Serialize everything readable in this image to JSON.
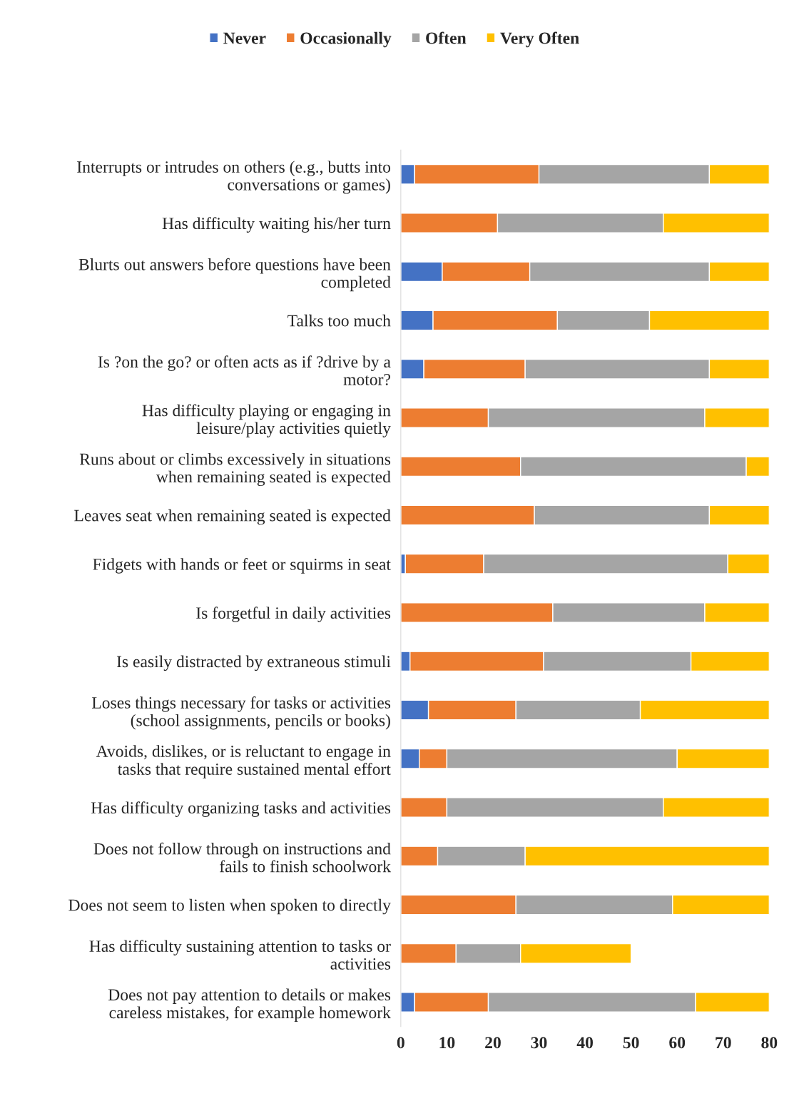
{
  "chart_data": {
    "type": "bar",
    "orientation": "horizontal",
    "stacked": true,
    "categories": [
      "Interrupts or intrudes on others (e.g., butts into\nconversations or games)",
      "Has difficulty waiting his/her turn",
      "Blurts out answers before questions have been\ncompleted",
      "Talks too much",
      "Is ?on the go? or often acts as if ?drive by a\nmotor?",
      "Has difficulty playing or engaging in\nleisure/play activities quietly",
      "Runs about or climbs excessively in situations\nwhen remaining seated is expected",
      "Leaves seat when remaining seated is expected",
      "Fidgets with hands or feet or squirms in seat",
      "Is forgetful in daily activities",
      "Is easily distracted by extraneous stimuli",
      "Loses things necessary for tasks or activities\n(school assignments, pencils or books)",
      "Avoids, dislikes, or is reluctant to engage in\ntasks that require sustained mental effort",
      "Has difficulty organizing tasks and activities",
      "Does not follow through on instructions and\nfails to finish schoolwork",
      "Does not seem to listen when spoken to directly",
      "Has difficulty sustaining attention to tasks or\nactivities",
      "Does not pay attention to details or makes\ncareless mistakes, for example homework"
    ],
    "series": [
      {
        "name": "Never",
        "color": "#4472c4",
        "values": [
          3,
          0,
          9,
          7,
          5,
          0,
          0,
          0,
          1,
          0,
          2,
          6,
          4,
          0,
          0,
          0,
          0,
          3
        ]
      },
      {
        "name": "Occasionally",
        "color": "#ed7d31",
        "values": [
          27,
          21,
          19,
          27,
          22,
          19,
          26,
          29,
          17,
          33,
          29,
          19,
          6,
          10,
          8,
          25,
          12,
          16
        ]
      },
      {
        "name": "Often",
        "color": "#a5a5a5",
        "values": [
          37,
          36,
          39,
          20,
          40,
          47,
          49,
          38,
          53,
          33,
          32,
          27,
          50,
          47,
          19,
          34,
          14,
          45
        ]
      },
      {
        "name": "Very Often",
        "color": "#ffc000",
        "values": [
          13,
          23,
          13,
          26,
          13,
          14,
          5,
          13,
          9,
          14,
          17,
          28,
          20,
          23,
          53,
          21,
          24,
          16
        ]
      }
    ],
    "xlim": [
      0,
      80
    ],
    "xticks": [
      0,
      10,
      20,
      30,
      40,
      50,
      60,
      70,
      80
    ],
    "legend": "top",
    "grid": false
  }
}
